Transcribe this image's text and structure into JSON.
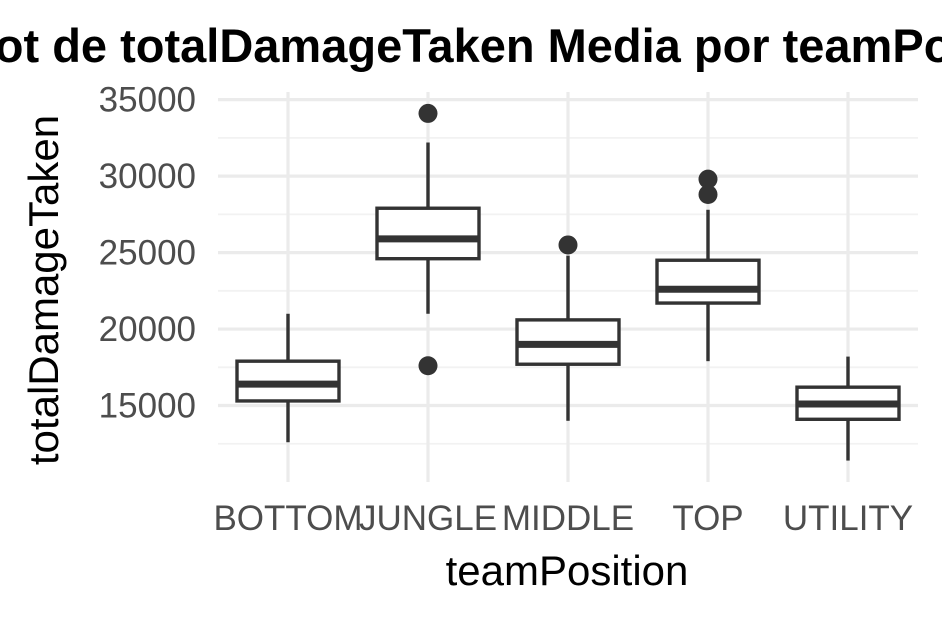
{
  "chart_data": {
    "type": "boxplot",
    "title": "Boxplot de totalDamageTaken Media por teamPosition",
    "xlabel": "teamPosition",
    "ylabel": "totalDamageTaken",
    "categories": [
      "BOTTOM",
      "JUNGLE",
      "MIDDLE",
      "TOP",
      "UTILITY"
    ],
    "ylim": [
      10000,
      35500
    ],
    "yticks": [
      15000,
      20000,
      25000,
      30000,
      35000
    ],
    "yticks_minor": [
      12500,
      17500,
      22500,
      27500,
      32500
    ],
    "grid": true,
    "legend": "none",
    "boxes": [
      {
        "category": "BOTTOM",
        "whisker_low": 12600,
        "q1": 15300,
        "median": 16400,
        "q3": 17900,
        "whisker_high": 21000,
        "outliers": []
      },
      {
        "category": "JUNGLE",
        "whisker_low": 21000,
        "q1": 24600,
        "median": 25900,
        "q3": 27900,
        "whisker_high": 32200,
        "outliers": [
          34100,
          17600
        ]
      },
      {
        "category": "MIDDLE",
        "whisker_low": 14000,
        "q1": 17700,
        "median": 19000,
        "q3": 20600,
        "whisker_high": 24800,
        "outliers": [
          25500
        ]
      },
      {
        "category": "TOP",
        "whisker_low": 17900,
        "q1": 21700,
        "median": 22600,
        "q3": 24500,
        "whisker_high": 27800,
        "outliers": [
          29800,
          28800
        ]
      },
      {
        "category": "UTILITY",
        "whisker_low": 11400,
        "q1": 14100,
        "median": 15100,
        "q3": 16200,
        "whisker_high": 18200,
        "outliers": []
      }
    ],
    "colors": {
      "box_line": "#333333",
      "box_fill": "#ffffff",
      "grid": "#ebebeb",
      "tick_text": "#4d4d4d"
    }
  }
}
